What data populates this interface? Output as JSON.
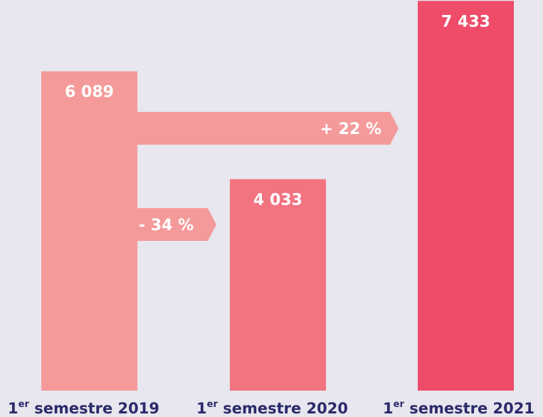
{
  "chart_data": {
    "type": "bar",
    "categories": [
      "1er semestre 2019",
      "1er semestre 2020",
      "1er semestre 2021"
    ],
    "values": [
      6089,
      4033,
      7433
    ],
    "value_labels": [
      "6 089",
      "4 033",
      "7 433"
    ],
    "colors": [
      "#f59a9a",
      "#f27480",
      "#ef4c6a"
    ],
    "ylim": [
      0,
      7450
    ],
    "changes": [
      {
        "label": "- 34 %",
        "value": -34
      },
      {
        "label": "+ 22 %",
        "value": 22
      }
    ]
  }
}
